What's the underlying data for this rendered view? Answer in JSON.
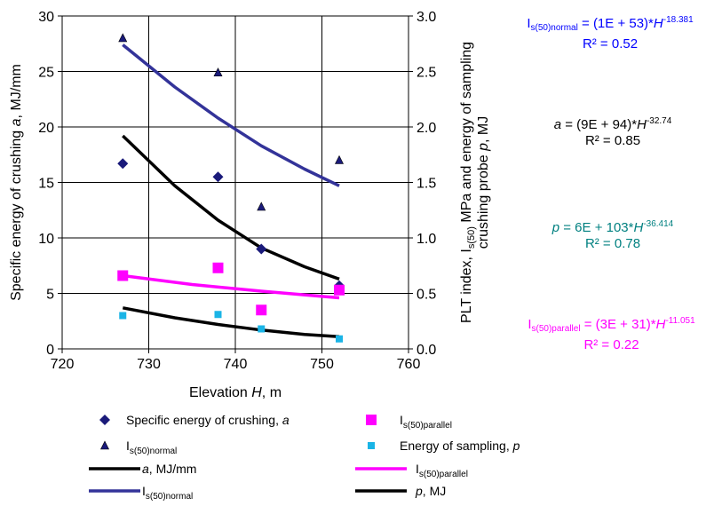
{
  "chart_data": {
    "type": "scatter",
    "xlabel_main": "Elevation ",
    "xlabel_var": "H",
    "xlabel_unit": ", m",
    "ylabel_left_main": "Specific energy of crushing ",
    "ylabel_left_var": "a",
    "ylabel_left_unit": ", MJ/mm",
    "ylabel_right_line1_prefix": "PLT index, I",
    "ylabel_right_line1_sub": "s(50)",
    "ylabel_right_line1_suffix": " MPa and energy of sampling",
    "ylabel_right_line2_prefix": "crushing probe ",
    "ylabel_right_line2_var": "p",
    "ylabel_right_line2_suffix": ", MJ",
    "xlim": [
      720,
      760
    ],
    "ylim_left": [
      0,
      30
    ],
    "ylim_right": [
      0.0,
      3.0
    ],
    "x_ticks": [
      "720",
      "730",
      "740",
      "750",
      "760"
    ],
    "y_left_ticks": [
      "0",
      "5",
      "10",
      "15",
      "20",
      "25",
      "30"
    ],
    "y_right_ticks": [
      "0.0",
      "0.5",
      "1.0",
      "1.5",
      "2.0",
      "2.5",
      "3.0"
    ],
    "grid": true,
    "series": [
      {
        "key": "a",
        "kind": "points",
        "marker": "diamond",
        "color": "#1a1a7a",
        "axis": "left",
        "x": [
          727,
          738,
          743,
          752
        ],
        "y": [
          16.7,
          15.5,
          9.0,
          5.7
        ]
      },
      {
        "key": "normal",
        "kind": "points",
        "marker": "triangle",
        "color": "#1a1a7a",
        "axis": "right",
        "x": [
          727,
          738,
          743,
          752
        ],
        "y": [
          2.8,
          2.49,
          1.28,
          1.7
        ]
      },
      {
        "key": "parallel",
        "kind": "points",
        "marker": "square",
        "color": "#ff00ff",
        "axis": "right",
        "x": [
          727,
          738,
          743,
          752
        ],
        "y": [
          0.66,
          0.73,
          0.35,
          0.53
        ]
      },
      {
        "key": "p",
        "kind": "points",
        "marker": "smallsquare",
        "color": "#1ab4e6",
        "axis": "right",
        "x": [
          727,
          738,
          743,
          752
        ],
        "y": [
          0.3,
          0.31,
          0.18,
          0.09
        ]
      },
      {
        "key": "a_fit",
        "kind": "line",
        "color": "#000000",
        "axis": "left",
        "x": [
          727,
          733,
          738,
          743,
          748,
          752
        ],
        "y": [
          19.2,
          14.7,
          11.6,
          9.1,
          7.4,
          6.3
        ]
      },
      {
        "key": "normal_fit",
        "kind": "line",
        "color": "#333399",
        "axis": "right",
        "x": [
          727,
          733,
          738,
          743,
          748,
          752
        ],
        "y": [
          2.74,
          2.36,
          2.08,
          1.83,
          1.62,
          1.47
        ]
      },
      {
        "key": "parallel_fit",
        "kind": "line",
        "color": "#ff00ff",
        "axis": "right",
        "x": [
          727,
          735,
          743,
          752
        ],
        "y": [
          0.66,
          0.58,
          0.52,
          0.46
        ]
      },
      {
        "key": "p_fit",
        "kind": "line",
        "color": "#000000",
        "axis": "right",
        "x": [
          727,
          733,
          738,
          743,
          748,
          752
        ],
        "y": [
          0.37,
          0.28,
          0.22,
          0.17,
          0.13,
          0.11
        ]
      }
    ],
    "legend": {
      "placement": "bottom",
      "items": [
        {
          "symbol": "diamond",
          "color": "#1a1a7a",
          "pre": "Specific energy of crushing, ",
          "var": "a",
          "sub": "",
          "post": ""
        },
        {
          "symbol": "square",
          "color": "#ff00ff",
          "pre": "I",
          "var": "",
          "sub": "s(50)parallel",
          "post": ""
        },
        {
          "symbol": "triangle",
          "color": "#1a1a7a",
          "pre": "I",
          "var": "",
          "sub": "s(50)normal",
          "post": ""
        },
        {
          "symbol": "smallsquare",
          "color": "#1ab4e6",
          "pre": "Energy of sampling, ",
          "var": "p",
          "sub": "",
          "post": ""
        },
        {
          "symbol": "line",
          "color": "#000000",
          "pre": "",
          "var": "a",
          "sub": "",
          "post": ", MJ/mm"
        },
        {
          "symbol": "line",
          "color": "#ff00ff",
          "pre": "I",
          "var": "",
          "sub": "s(50)parallel",
          "post": ""
        },
        {
          "symbol": "line",
          "color": "#333399",
          "pre": "I",
          "var": "",
          "sub": "s(50)normal",
          "post": ""
        },
        {
          "symbol": "line",
          "color": "#000000",
          "pre": "",
          "var": "p",
          "sub": "",
          "post": ", MJ"
        }
      ]
    },
    "equations": [
      {
        "key": "normal",
        "color": "#0000ff",
        "lhs": "I",
        "lhs_sub": "s(50)normal",
        "mid": " = (1E + 53)*",
        "var": "H",
        "exp": "-18.381",
        "r2": "R² = 0.52"
      },
      {
        "key": "a",
        "color": "#000000",
        "lhs": "a",
        "lhs_sub": "",
        "mid": " = (9E + 94)*",
        "var": "H",
        "exp": "-32.74",
        "r2": "R² = 0.85"
      },
      {
        "key": "p",
        "color": "#008080",
        "lhs": "p",
        "lhs_sub": "",
        "mid": " = 6E + 103*",
        "var": "H",
        "exp": "-36.414",
        "r2": "R² = 0.78"
      },
      {
        "key": "parallel",
        "color": "#ff00ff",
        "lhs": "I",
        "lhs_sub": "s(50)parallel",
        "mid": " = (3E + 31)*",
        "var": "H",
        "exp": "-11.051",
        "r2": "R² = 0.22"
      }
    ]
  }
}
